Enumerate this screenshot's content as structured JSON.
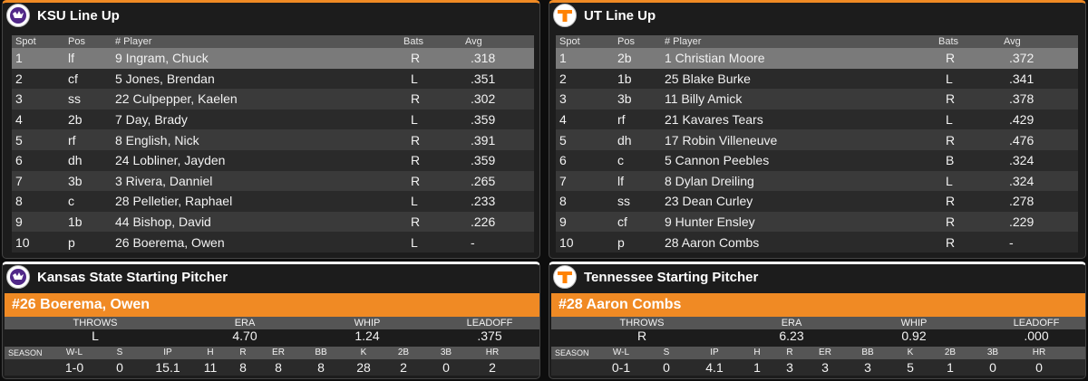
{
  "ksu_lineup": {
    "title": "KSU Line Up",
    "headers": [
      "Spot",
      "Pos",
      "# Player",
      "Bats",
      "Avg"
    ],
    "rows": [
      [
        "1",
        "lf",
        "9 Ingram, Chuck",
        "R",
        ".318"
      ],
      [
        "2",
        "cf",
        "5 Jones, Brendan",
        "L",
        ".351"
      ],
      [
        "3",
        "ss",
        "22 Culpepper, Kaelen",
        "R",
        ".302"
      ],
      [
        "4",
        "2b",
        "7 Day, Brady",
        "L",
        ".359"
      ],
      [
        "5",
        "rf",
        "8 English, Nick",
        "R",
        ".391"
      ],
      [
        "6",
        "dh",
        "24 Lobliner, Jayden",
        "R",
        ".359"
      ],
      [
        "7",
        "3b",
        "3 Rivera, Danniel",
        "R",
        ".265"
      ],
      [
        "8",
        "c",
        "28 Pelletier, Raphael",
        "L",
        ".233"
      ],
      [
        "9",
        "1b",
        "44 Bishop, David",
        "R",
        ".226"
      ],
      [
        "10",
        "p",
        "26 Boerema, Owen",
        "L",
        "-"
      ]
    ]
  },
  "ut_lineup": {
    "title": "UT Line Up",
    "headers": [
      "Spot",
      "Pos",
      "# Player",
      "Bats",
      "Avg"
    ],
    "rows": [
      [
        "1",
        "2b",
        "1 Christian Moore",
        "R",
        ".372"
      ],
      [
        "2",
        "1b",
        "25 Blake Burke",
        "L",
        ".341"
      ],
      [
        "3",
        "3b",
        "11 Billy Amick",
        "R",
        ".378"
      ],
      [
        "4",
        "rf",
        "21 Kavares Tears",
        "L",
        ".429"
      ],
      [
        "5",
        "dh",
        "17 Robin Villeneuve",
        "R",
        ".476"
      ],
      [
        "6",
        "c",
        "5 Cannon Peebles",
        "B",
        ".324"
      ],
      [
        "7",
        "lf",
        "8 Dylan Dreiling",
        "L",
        ".324"
      ],
      [
        "8",
        "ss",
        "23 Dean Curley",
        "R",
        ".278"
      ],
      [
        "9",
        "cf",
        "9 Hunter Ensley",
        "R",
        ".229"
      ],
      [
        "10",
        "p",
        "28 Aaron Combs",
        "R",
        "-"
      ]
    ]
  },
  "ksu_pitcher": {
    "title": "Kansas State Starting Pitcher",
    "name": "#26 Boerema, Owen",
    "stat_headers": [
      "THROWS",
      "ERA",
      "WHIP",
      "LEADOFF"
    ],
    "stat_values": [
      "L",
      "4.70",
      "1.24",
      ".375"
    ],
    "season_headers": [
      "SEASON",
      "W-L",
      "S",
      "IP",
      "H",
      "R",
      "ER",
      "BB",
      "K",
      "2B",
      "3B",
      "HR"
    ],
    "season_values": [
      "",
      "1-0",
      "0",
      "15.1",
      "11",
      "8",
      "8",
      "8",
      "28",
      "2",
      "0",
      "2"
    ]
  },
  "ut_pitcher": {
    "title": "Tennessee Starting Pitcher",
    "name": "#28 Aaron Combs",
    "stat_headers": [
      "THROWS",
      "ERA",
      "WHIP",
      "LEADOFF"
    ],
    "stat_values": [
      "R",
      "6.23",
      "0.92",
      ".000"
    ],
    "season_headers": [
      "SEASON",
      "W-L",
      "S",
      "IP",
      "H",
      "R",
      "ER",
      "BB",
      "K",
      "2B",
      "3B",
      "HR"
    ],
    "season_values": [
      "",
      "0-1",
      "0",
      "4.1",
      "1",
      "3",
      "3",
      "3",
      "5",
      "1",
      "0",
      "0"
    ]
  },
  "colors": {
    "accent": "#f08a24",
    "ksu_purple": "#512888",
    "ut_orange": "#ff8200"
  },
  "icons": {
    "ksu_logo": "wildcat-logo-icon",
    "ut_logo": "power-t-logo-icon"
  }
}
